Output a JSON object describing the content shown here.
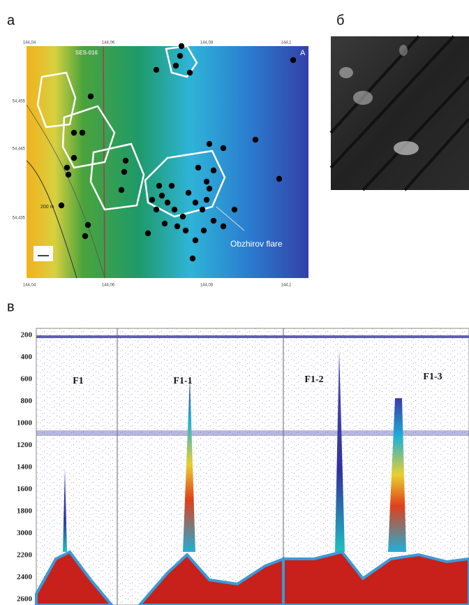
{
  "panels": {
    "a": {
      "label": "а",
      "map": {
        "x_ticks_top": [
          "144,04",
          "144,06",
          "144,08",
          "144,1"
        ],
        "x_ticks_bottom": [
          "144,04",
          "144,06",
          "144,08",
          "144,1"
        ],
        "y_ticks": [
          "54,455",
          "54,445",
          "54,435"
        ],
        "annotations": {
          "profile": "SES-016",
          "area": "A",
          "scale": "200 m",
          "flare": "Obzhirov flare"
        }
      }
    },
    "b": {
      "label": "б"
    },
    "c": {
      "label": "в",
      "depth_ticks": [
        "200",
        "400",
        "600",
        "800",
        "1000",
        "1200",
        "1400",
        "1600",
        "1800",
        "3000",
        "2200",
        "2400",
        "2600"
      ],
      "flares": [
        "F1",
        "F1-1",
        "F1-2",
        "F1-3"
      ]
    }
  }
}
